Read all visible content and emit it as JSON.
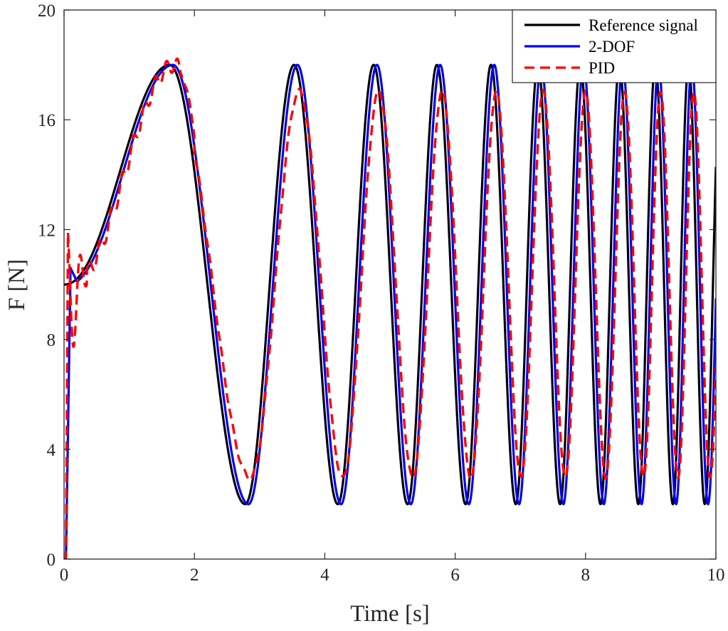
{
  "chart_data": {
    "type": "line",
    "title": "",
    "xlabel": "Time [s]",
    "ylabel": "F [N]",
    "xlim": [
      0,
      10
    ],
    "ylim": [
      0,
      20
    ],
    "xticks": [
      0,
      2,
      4,
      6,
      8,
      10
    ],
    "yticks": [
      0,
      4,
      8,
      12,
      16,
      20
    ],
    "xtick_labels": [
      "0",
      "2",
      "4",
      "6",
      "8",
      "10"
    ],
    "ytick_labels": [
      "0",
      "4",
      "8",
      "12",
      "16",
      "20"
    ],
    "grid": false,
    "legend_position": "top-right",
    "reference_model": {
      "description": "chirp-like sinusoid, offset 10 N, amplitude 8 N",
      "offset": 10,
      "amplitude": 8,
      "peaks_t": [
        1.62,
        3.53,
        4.75,
        5.72,
        6.55,
        7.27,
        7.92,
        8.52,
        9.07,
        9.58
      ],
      "troughs_t": [
        2.78,
        4.2,
        5.27,
        6.16,
        6.93,
        7.61,
        8.23,
        8.81,
        9.34,
        9.83
      ],
      "end_t": 10.0,
      "end_value": 10
    },
    "series": [
      {
        "name": "Reference signal",
        "color": "#000000",
        "style": "solid",
        "points": [
          [
            0,
            10
          ],
          [
            0.2,
            10.2
          ],
          [
            0.5,
            11
          ],
          [
            0.8,
            12.8
          ],
          [
            1.1,
            15.2
          ],
          [
            1.35,
            17
          ],
          [
            1.62,
            18
          ],
          [
            1.9,
            16.6
          ],
          [
            2.2,
            12.5
          ],
          [
            2.5,
            6.5
          ],
          [
            2.78,
            2
          ],
          [
            3.1,
            4.5
          ],
          [
            3.3,
            10
          ],
          [
            3.53,
            18
          ],
          [
            3.85,
            12
          ],
          [
            4.2,
            2
          ],
          [
            4.5,
            8
          ],
          [
            4.75,
            18
          ],
          [
            5.0,
            12
          ],
          [
            5.27,
            2
          ],
          [
            5.5,
            8
          ],
          [
            5.72,
            18
          ],
          [
            5.95,
            12
          ],
          [
            6.16,
            2
          ],
          [
            6.55,
            18
          ],
          [
            6.93,
            2
          ],
          [
            7.27,
            18
          ],
          [
            7.61,
            2
          ],
          [
            7.92,
            18
          ],
          [
            8.23,
            2
          ],
          [
            8.52,
            18
          ],
          [
            8.81,
            2
          ],
          [
            9.07,
            18
          ],
          [
            9.34,
            2
          ],
          [
            9.58,
            18
          ],
          [
            9.83,
            2
          ],
          [
            10.0,
            10
          ]
        ]
      },
      {
        "name": "2-DOF",
        "color": "#0000ff",
        "style": "solid",
        "lag_s": 0.05,
        "points": [
          [
            0,
            0
          ],
          [
            0.05,
            6
          ],
          [
            0.1,
            10.6
          ],
          [
            0.2,
            10.1
          ],
          [
            0.5,
            11
          ],
          [
            1.0,
            14.5
          ],
          [
            1.62,
            18
          ],
          [
            2.2,
            12.8
          ],
          [
            2.82,
            2
          ],
          [
            3.58,
            18
          ],
          [
            4.25,
            2
          ],
          [
            4.8,
            18
          ],
          [
            5.32,
            2
          ],
          [
            5.77,
            18
          ],
          [
            6.21,
            2
          ],
          [
            6.6,
            18
          ],
          [
            6.98,
            2
          ],
          [
            7.32,
            18
          ],
          [
            7.66,
            2
          ],
          [
            7.97,
            18
          ],
          [
            8.28,
            2
          ],
          [
            8.57,
            18
          ],
          [
            8.86,
            2
          ],
          [
            9.12,
            18
          ],
          [
            9.39,
            2
          ],
          [
            9.63,
            18
          ],
          [
            9.88,
            2
          ],
          [
            10.0,
            5.6
          ]
        ]
      },
      {
        "name": "PID",
        "color": "#ff0000",
        "style": "dashed",
        "lag_s": 0.08,
        "shrink": 0.88,
        "points": [
          [
            0,
            0
          ],
          [
            0.05,
            11.9
          ],
          [
            0.1,
            9
          ],
          [
            0.15,
            8
          ],
          [
            0.2,
            10.1
          ],
          [
            0.3,
            9.3
          ],
          [
            0.5,
            11
          ],
          [
            1.0,
            14
          ],
          [
            1.65,
            18.2
          ],
          [
            2.2,
            13
          ],
          [
            2.85,
            2.6
          ],
          [
            3.6,
            17.6
          ],
          [
            4.28,
            2.8
          ],
          [
            4.83,
            17.4
          ],
          [
            5.35,
            2.8
          ],
          [
            5.8,
            17.4
          ],
          [
            6.24,
            2.8
          ],
          [
            6.63,
            17.4
          ],
          [
            7.01,
            2.8
          ],
          [
            7.35,
            17.4
          ],
          [
            7.69,
            2.8
          ],
          [
            8.0,
            17.4
          ],
          [
            8.31,
            2.8
          ],
          [
            8.6,
            17.4
          ],
          [
            8.89,
            2.8
          ],
          [
            9.15,
            17.4
          ],
          [
            9.42,
            2.8
          ],
          [
            9.66,
            17.4
          ],
          [
            9.91,
            3
          ],
          [
            10.0,
            7.5
          ]
        ]
      }
    ]
  }
}
